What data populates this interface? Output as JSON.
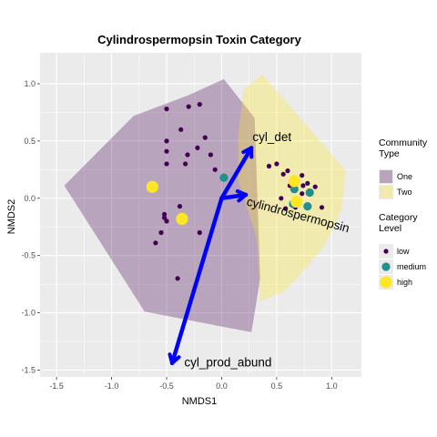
{
  "chart_data": {
    "type": "scatter",
    "title": "Cylindrospermopsin Toxin Category",
    "xlabel": "NMDS1",
    "ylabel": "NMDS2",
    "xlim": [
      -1.65,
      1.27
    ],
    "ylim": [
      -1.56,
      1.27
    ],
    "x_ticks": [
      -1.5,
      -1.0,
      -0.5,
      0.0,
      0.5,
      1.0
    ],
    "x_tick_labels": [
      "-1.5",
      "-1.0",
      "-0.5",
      "0.0",
      "0.5",
      "1.0"
    ],
    "y_ticks": [
      -1.5,
      -1.0,
      -0.5,
      0.0,
      0.5,
      1.0
    ],
    "y_tick_labels": [
      "-1.5",
      "-1.0",
      "-0.5",
      "0.0",
      "0.5",
      "1.0"
    ],
    "grid": true,
    "colors": {
      "panel_bg": "#ebebeb",
      "grid": "#ffffff",
      "hull_one": "#440154",
      "hull_two": "#fde725",
      "low": "#440154",
      "medium": "#21908c",
      "high": "#fde725",
      "vector": "#0000ff"
    },
    "hulls": [
      {
        "group": "One",
        "points": [
          [
            -1.43,
            0.11
          ],
          [
            -0.8,
            0.72
          ],
          [
            -0.3,
            0.9
          ],
          [
            0.02,
            1.04
          ],
          [
            0.3,
            0.7
          ],
          [
            0.35,
            -0.7
          ],
          [
            0.3,
            -1.0
          ],
          [
            0.27,
            -1.17
          ],
          [
            -0.7,
            -0.99
          ]
        ]
      },
      {
        "group": "Two",
        "points": [
          [
            0.2,
            0.95
          ],
          [
            0.37,
            1.08
          ],
          [
            1.13,
            0.24
          ],
          [
            1.09,
            -0.1
          ],
          [
            0.93,
            -0.42
          ],
          [
            0.72,
            -0.66
          ],
          [
            0.57,
            -0.81
          ],
          [
            0.35,
            -0.9
          ],
          [
            0.32,
            -0.35
          ],
          [
            0.15,
            0.16
          ],
          [
            0.15,
            0.55
          ]
        ]
      }
    ],
    "series": [
      {
        "name": "low",
        "points": [
          [
            -0.5,
            0.78
          ],
          [
            -0.3,
            0.8
          ],
          [
            -0.2,
            0.82
          ],
          [
            -0.37,
            0.6
          ],
          [
            -0.5,
            0.5
          ],
          [
            -0.15,
            0.53
          ],
          [
            -0.22,
            0.44
          ],
          [
            -0.31,
            0.38
          ],
          [
            -0.5,
            0.41
          ],
          [
            -0.33,
            0.3
          ],
          [
            -0.1,
            0.38
          ],
          [
            -0.06,
            0.25
          ],
          [
            -0.5,
            0.3
          ],
          [
            -0.52,
            -0.14
          ],
          [
            -0.52,
            -0.17
          ],
          [
            -0.38,
            -0.07
          ],
          [
            -0.5,
            -0.2
          ],
          [
            -0.55,
            -0.3
          ],
          [
            -0.2,
            -0.3
          ],
          [
            -0.6,
            -0.39
          ],
          [
            -0.4,
            -0.7
          ],
          [
            0.43,
            0.28
          ],
          [
            0.5,
            0.3
          ],
          [
            0.6,
            0.24
          ],
          [
            0.56,
            0.21
          ],
          [
            0.73,
            0.2
          ],
          [
            0.62,
            0.11
          ],
          [
            0.74,
            0.11
          ],
          [
            0.78,
            0.13
          ],
          [
            0.85,
            0.1
          ],
          [
            0.67,
            -0.08
          ],
          [
            0.54,
            0.0
          ],
          [
            0.73,
            0.04
          ],
          [
            0.91,
            -0.08
          ],
          [
            0.58,
            -0.09
          ]
        ],
        "marker": "circle"
      },
      {
        "name": "medium",
        "points": [
          [
            0.02,
            0.18
          ],
          [
            0.66,
            0.08
          ],
          [
            0.8,
            0.05
          ],
          [
            0.65,
            -0.05
          ],
          [
            0.78,
            -0.07
          ]
        ],
        "marker": "circle"
      },
      {
        "name": "high",
        "points": [
          [
            -0.63,
            0.1
          ],
          [
            -0.36,
            -0.18
          ],
          [
            0.66,
            0.15
          ],
          [
            0.68,
            -0.03
          ]
        ],
        "marker": "circle"
      }
    ],
    "vectors": [
      {
        "name": "cyl_det",
        "from": [
          0.0,
          0.0
        ],
        "to": [
          0.27,
          0.44
        ]
      },
      {
        "name": "cylindrospermopsin",
        "from": [
          0.0,
          0.0
        ],
        "to": [
          0.22,
          0.03
        ]
      },
      {
        "name": "cyl_prod_abund",
        "from": [
          0.0,
          0.0
        ],
        "to": [
          -0.45,
          -1.44
        ]
      }
    ],
    "vector_labels": [
      {
        "text": "cyl_det",
        "at": [
          0.28,
          0.5
        ]
      },
      {
        "text": "cylindrospermopsin",
        "at": [
          0.22,
          -0.06
        ],
        "rotate": 15
      },
      {
        "text": "cyl_prod_abund",
        "at": [
          -0.34,
          -1.47
        ]
      }
    ],
    "legend": {
      "placement": "right",
      "sections": [
        {
          "title_lines": [
            "Community",
            "Type"
          ],
          "entries": [
            {
              "label": "One",
              "key": "hull_one"
            },
            {
              "label": "Two",
              "key": "hull_two"
            }
          ]
        },
        {
          "title_lines": [
            "Category",
            "Level"
          ],
          "entries": [
            {
              "label": "low",
              "key": "low"
            },
            {
              "label": "medium",
              "key": "medium"
            },
            {
              "label": "high",
              "key": "high"
            }
          ]
        }
      ]
    }
  }
}
